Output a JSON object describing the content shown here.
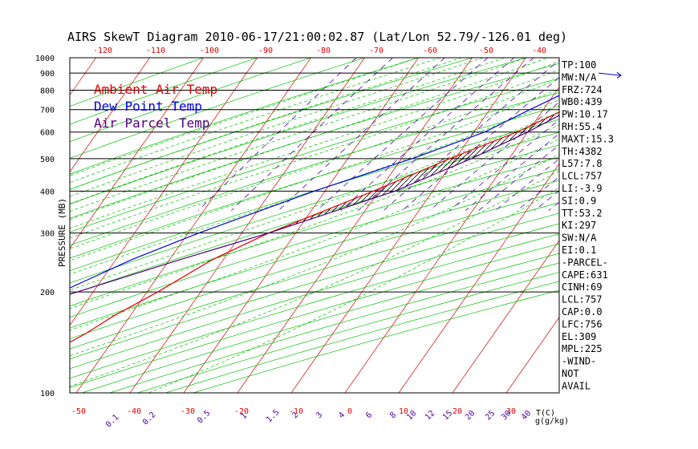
{
  "colors": {
    "ambient": "#e00000",
    "dewpoint": "#0000e0",
    "parcel": "#500080",
    "isotherm": "#d00000",
    "dry_adiabat": "#00c000",
    "moist_adiabat": "#00c000",
    "mixing_ratio": "#5000a0",
    "isobar": "#000000",
    "frame": "#000000"
  },
  "chart_data": {
    "type": "line",
    "title": "AIRS SkewT Diagram 2010-06-17/21:00:02.87 (Lat/Lon 52.79/-126.01 deg)",
    "ylabel": "PRESSURE (MB)",
    "xlabel_unit": "T(C)",
    "mixing_unit": "g(g/kg)",
    "y_scale": "log",
    "ylim": [
      1000,
      100
    ],
    "pressure_ticks": [
      "100",
      "200",
      "300",
      "400",
      "500",
      "600",
      "700",
      "800",
      "900",
      "1000"
    ],
    "temp_ticks_bottom": [
      "-50",
      "-40",
      "-30",
      "-20",
      "-10",
      "0",
      "10",
      "20",
      "30"
    ],
    "temp_ticks_top": [
      "-120",
      "-110",
      "-100",
      "-90",
      "-80",
      "-70",
      "-60",
      "-50",
      "-40"
    ],
    "mixing_ratio_ticks": [
      "0.1",
      "0.2",
      "0.5",
      "1",
      "1.5",
      "2",
      "3",
      "4",
      "6",
      "8",
      "10",
      "12",
      "15",
      "20",
      "25",
      "30",
      "40"
    ],
    "legend": [
      {
        "label": "Ambient Air Temp",
        "color": "#e00000"
      },
      {
        "label": "Dew Point Temp",
        "color": "#0000e0"
      },
      {
        "label": "Air Parcel Temp",
        "color": "#500080"
      }
    ],
    "series": [
      {
        "name": "Ambient Air Temp",
        "points": [
          [
            885,
            14.5
          ],
          [
            860,
            11.5
          ],
          [
            800,
            9
          ],
          [
            700,
            4
          ],
          [
            600,
            -2
          ],
          [
            500,
            -11
          ],
          [
            400,
            -21
          ],
          [
            300,
            -35
          ],
          [
            250,
            -42
          ],
          [
            200,
            -48
          ],
          [
            170,
            -53
          ],
          [
            150,
            -56
          ],
          [
            120,
            -63
          ],
          [
            100,
            -68
          ]
        ]
      },
      {
        "name": "Dew Point Temp",
        "points": [
          [
            885,
            6.5
          ],
          [
            860,
            4
          ],
          [
            800,
            2.5
          ],
          [
            700,
            -2.5
          ],
          [
            600,
            -8
          ],
          [
            500,
            -18
          ],
          [
            400,
            -32
          ],
          [
            300,
            -48
          ],
          [
            250,
            -57
          ],
          [
            200,
            -66
          ],
          [
            170,
            -76
          ],
          [
            150,
            -86
          ],
          [
            120,
            -95
          ],
          [
            100,
            -100
          ]
        ]
      },
      {
        "name": "Air Parcel Temp",
        "points": [
          [
            885,
            18
          ],
          [
            860,
            11.5
          ],
          [
            757,
            7.8
          ],
          [
            700,
            5
          ],
          [
            600,
            0
          ],
          [
            500,
            -7
          ],
          [
            400,
            -17
          ],
          [
            300,
            -35
          ],
          [
            250,
            -48
          ],
          [
            200,
            -63
          ],
          [
            150,
            -83
          ],
          [
            120,
            -98
          ],
          [
            100,
            -110
          ]
        ]
      }
    ],
    "wind_barb": {
      "pressure": 885,
      "temp": 10
    }
  },
  "indices": [
    "TP:100",
    "MW:N/A",
    "FRZ:724",
    "WB0:439",
    "PW:10.17",
    "RH:55.4",
    "MAXT:15.3",
    "TH:4382",
    "L57:7.8",
    "LCL:757",
    "LI:-3.9",
    "SI:0.9",
    "TT:53.2",
    "KI:297",
    "SW:N/A",
    "EI:0.1",
    "-PARCEL-",
    "CAPE:631",
    "CINH:69",
    "LCL:757",
    "CAP:0.0",
    "LFC:756",
    "EL:309",
    "MPL:225",
    "-WIND-",
    " NOT",
    "AVAIL"
  ]
}
